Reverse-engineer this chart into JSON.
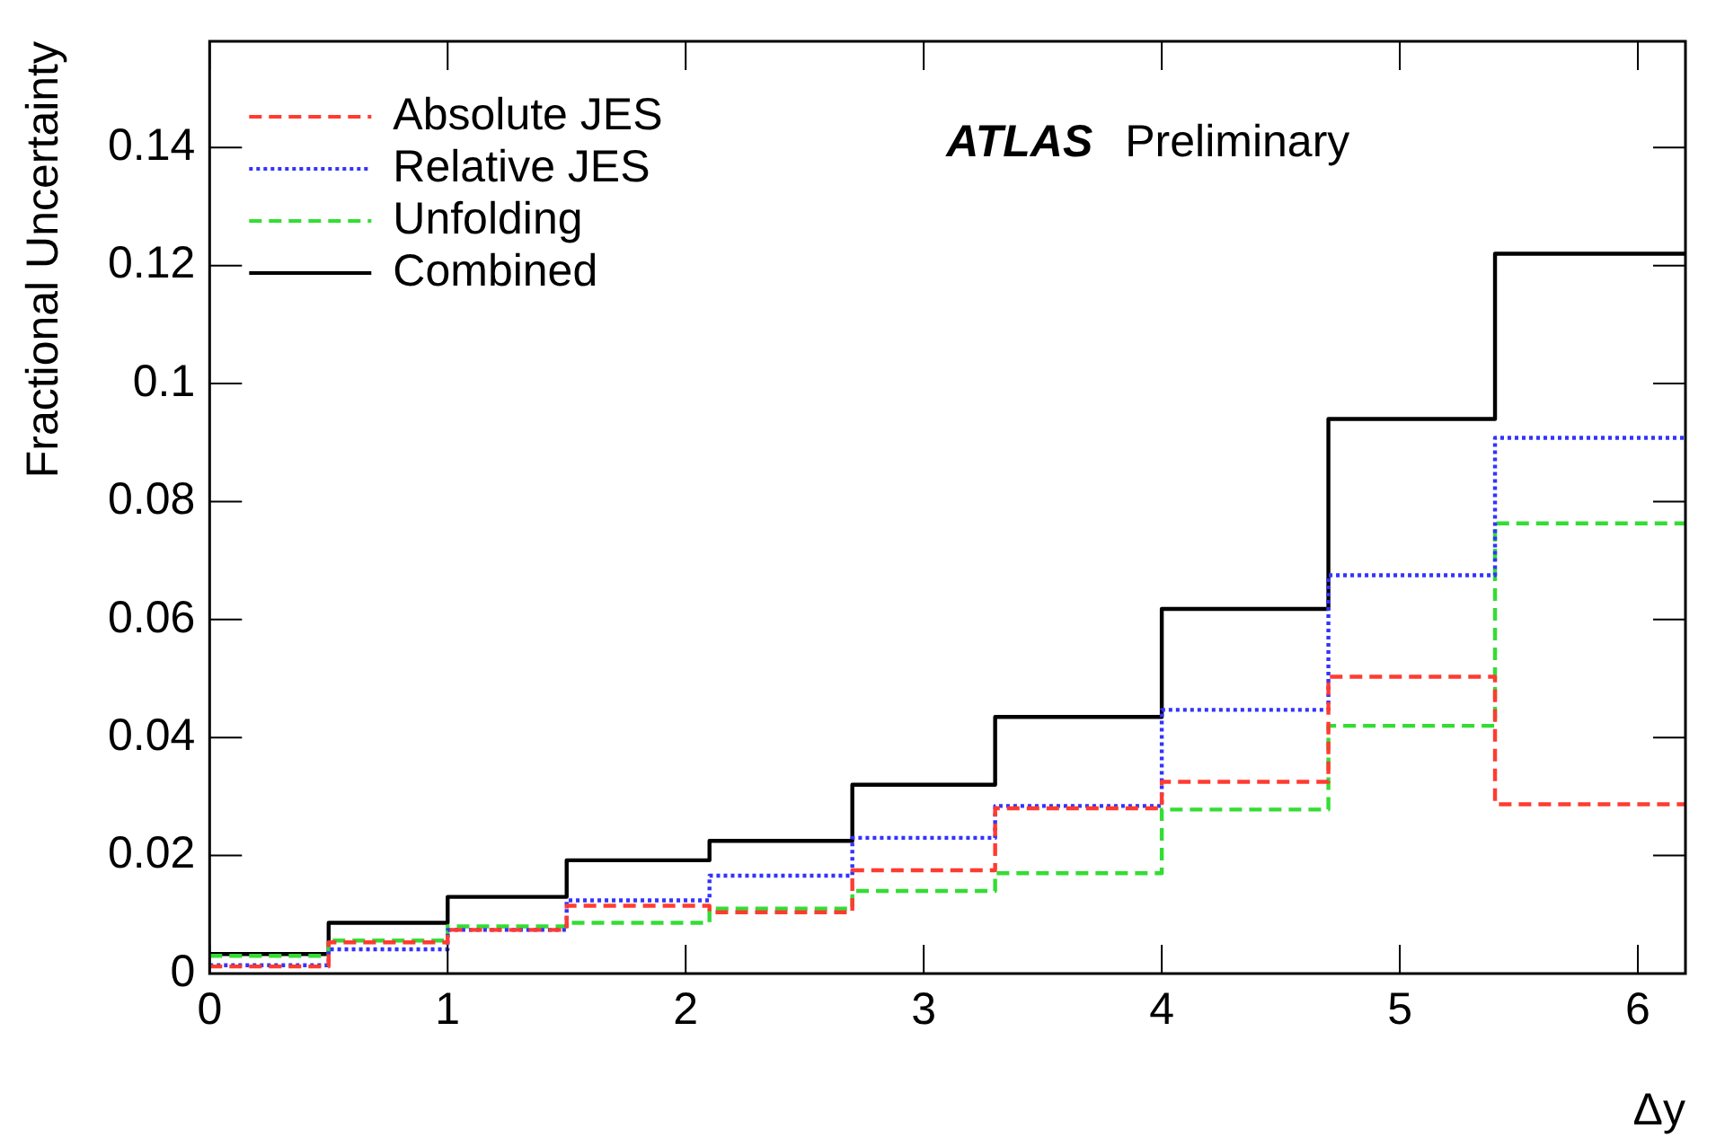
{
  "chart_data": {
    "type": "histogram",
    "xlabel": "Δy",
    "ylabel": "Fractional Uncertainty",
    "bins": [
      0,
      0.5,
      1,
      1.5,
      2.1,
      2.7,
      3.3,
      4,
      4.7,
      5.4,
      6.2
    ],
    "series": [
      {
        "name": "Absolute JES",
        "color": "#ff3b30",
        "line_style": "dashed",
        "values": [
          0.0012,
          0.0053,
          0.0074,
          0.0115,
          0.0104,
          0.0175,
          0.028,
          0.0325,
          0.0503,
          0.0287
        ]
      },
      {
        "name": "Relative JES",
        "color": "#3333ff",
        "line_style": "dotted",
        "values": [
          0.0014,
          0.0041,
          0.0074,
          0.0124,
          0.0166,
          0.023,
          0.0284,
          0.0447,
          0.0675,
          0.0908
        ]
      },
      {
        "name": "Unfolding",
        "color": "#33dd33",
        "line_style": "dashed",
        "values": [
          0.003,
          0.0056,
          0.008,
          0.0086,
          0.011,
          0.014,
          0.017,
          0.0278,
          0.042,
          0.0763
        ]
      },
      {
        "name": "Combined",
        "color": "#000000",
        "line_style": "solid",
        "values": [
          0.0033,
          0.0086,
          0.013,
          0.0192,
          0.0225,
          0.032,
          0.0435,
          0.0618,
          0.094,
          0.122
        ]
      }
    ],
    "xlim": [
      0,
      6.2
    ],
    "ylim": [
      0,
      0.158
    ],
    "xticks": [
      0,
      1,
      2,
      3,
      4,
      5,
      6
    ],
    "yticks": [
      0,
      0.02,
      0.04,
      0.06,
      0.08,
      0.1,
      0.12,
      0.14
    ],
    "grid": false,
    "legend": "top left",
    "annotations": [
      "ATLAS",
      "Preliminary"
    ]
  }
}
